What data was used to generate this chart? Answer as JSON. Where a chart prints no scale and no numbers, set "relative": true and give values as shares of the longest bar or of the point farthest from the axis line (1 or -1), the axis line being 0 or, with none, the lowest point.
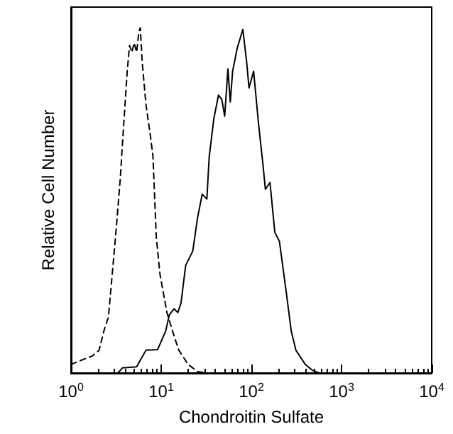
{
  "chart_data": {
    "type": "line",
    "xlabel": "Chondroitin Sulfate",
    "ylabel": "Relative Cell Number",
    "relative": true,
    "log": "x",
    "grid": false,
    "marker": "none",
    "xlim": [
      1,
      10000
    ],
    "xticks": [
      {
        "value": 1,
        "label": "10$^{0}$"
      },
      {
        "value": 10,
        "label": "10$^{1}$"
      },
      {
        "value": 100,
        "label": "10$^{2}$"
      },
      {
        "value": 1000,
        "label": "10$^{3}$"
      },
      {
        "value": 10000,
        "label": "10$^{4}$"
      }
    ],
    "series": [
      {
        "color": "#000000",
        "line_style": "dashed",
        "x": [
          1,
          1.27,
          1.71,
          2.05,
          2.31,
          2.6,
          3.12,
          3.51,
          3.73,
          4.2,
          4.46,
          4.73,
          5.02,
          5.34,
          5.67,
          5.87,
          6.16,
          6.78,
          7.64,
          8.11,
          8.82,
          9.71,
          11.6,
          13.9,
          15.7,
          19.9,
          25.3,
          32.1,
          10000
        ],
        "values": [
          0.025,
          0.036,
          0.049,
          0.066,
          0.121,
          0.162,
          0.395,
          0.559,
          0.668,
          0.874,
          0.949,
          0.929,
          0.956,
          0.929,
          0.99,
          1,
          0.901,
          0.778,
          0.682,
          0.627,
          0.395,
          0.285,
          0.175,
          0.107,
          0.066,
          0.025,
          0.004,
          0,
          0
        ]
      },
      {
        "color": "#000000",
        "line_style": "solid",
        "x": [
          1,
          3.31,
          3.73,
          5.34,
          6.78,
          9.14,
          11.2,
          12.3,
          13.9,
          15.3,
          16.6,
          18.7,
          22.4,
          25.3,
          28.5,
          32.1,
          34.1,
          38.4,
          43.2,
          47.1,
          50.6,
          55.0,
          58.4,
          62.0,
          69.8,
          80.5,
          88.7,
          94.2,
          106,
          120,
          135,
          143,
          161,
          182,
          205,
          245,
          277,
          312,
          396,
          474,
          567,
          10000
        ],
        "values": [
          0,
          0,
          0.015,
          0.018,
          0.066,
          0.068,
          0.121,
          0.168,
          0.186,
          0.175,
          0.203,
          0.312,
          0.353,
          0.449,
          0.518,
          0.504,
          0.627,
          0.737,
          0.805,
          0.792,
          0.744,
          0.881,
          0.785,
          0.874,
          0.942,
          0.995,
          0.901,
          0.826,
          0.874,
          0.723,
          0.6,
          0.532,
          0.552,
          0.408,
          0.381,
          0.23,
          0.121,
          0.066,
          0.025,
          0.008,
          0,
          0
        ]
      }
    ]
  }
}
